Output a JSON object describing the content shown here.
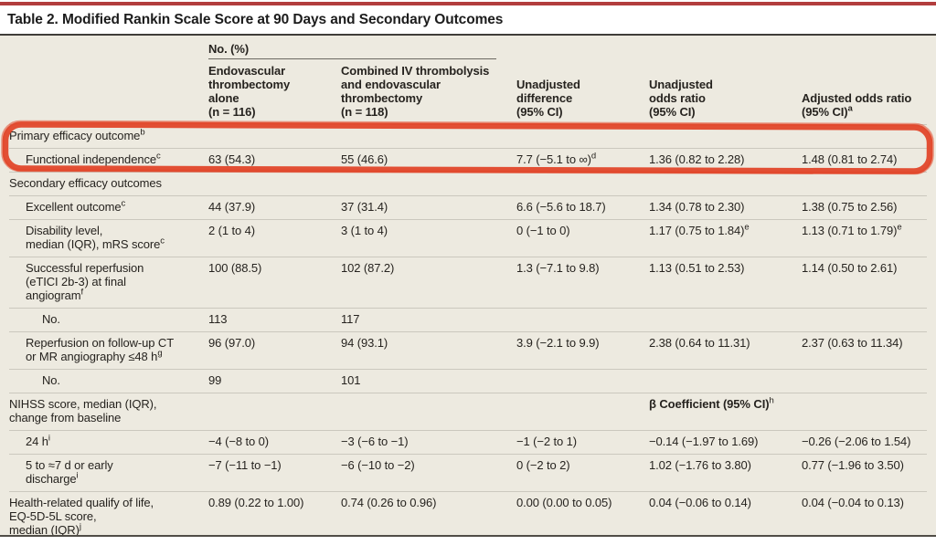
{
  "title": "Table 2. Modified Rankin Scale Score at 90 Days and Secondary Outcomes",
  "colors": {
    "top_bar": "#b23d3d",
    "panel_background": "#edeae0",
    "marker_annotation": "#e2472a"
  },
  "table": {
    "group_header": "No. (%)",
    "columns": [
      {
        "text": ""
      },
      {
        "text": "Endovascular\nthrombectomy\nalone\n(n = 116)"
      },
      {
        "text": "Combined IV thrombolysis\nand endovascular\nthrombectomy\n(n = 118)"
      },
      {
        "text": "Unadjusted\ndifference\n(95% CI)"
      },
      {
        "text": "Unadjusted\nodds ratio\n(95% CI)"
      },
      {
        "text": "Adjusted odds ratio\n(95% CI)",
        "sup": "a"
      }
    ],
    "rows": [
      {
        "indent": 0,
        "label": {
          "text": "Primary efficacy outcome",
          "sup": "b"
        },
        "cells": [
          "",
          "",
          "",
          "",
          ""
        ]
      },
      {
        "indent": 1,
        "label": {
          "text": "Functional independence",
          "sup": "c"
        },
        "cells": [
          "63 (54.3)",
          "55 (46.6)",
          {
            "text": "7.7 (−5.1 to ∞)",
            "sup": "d"
          },
          "1.36 (0.82 to 2.28)",
          "1.48 (0.81 to 2.74)"
        ]
      },
      {
        "indent": 0,
        "label": {
          "text": "Secondary efficacy outcomes"
        },
        "cells": [
          "",
          "",
          "",
          "",
          ""
        ]
      },
      {
        "indent": 1,
        "label": {
          "text": "Excellent outcome",
          "sup": "c"
        },
        "cells": [
          "44 (37.9)",
          "37 (31.4)",
          "6.6 (−5.6 to 18.7)",
          "1.34 (0.78 to 2.30)",
          "1.38 (0.75 to 2.56)"
        ]
      },
      {
        "indent": 1,
        "label": {
          "text": "Disability level,\nmedian (IQR), mRS score",
          "sup": "c"
        },
        "cells": [
          "2 (1 to 4)",
          "3 (1 to 4)",
          "0 (−1 to 0)",
          {
            "text": "1.17 (0.75 to 1.84)",
            "sup": "e"
          },
          {
            "text": "1.13 (0.71 to 1.79)",
            "sup": "e"
          }
        ]
      },
      {
        "indent": 1,
        "label": {
          "text": "Successful reperfusion\n(eTICI 2b-3) at final\nangiogram",
          "sup": "f"
        },
        "cells": [
          "100 (88.5)",
          "102 (87.2)",
          "1.3 (−7.1 to 9.8)",
          "1.13 (0.51 to 2.53)",
          "1.14 (0.50 to 2.61)"
        ]
      },
      {
        "indent": 2,
        "label": {
          "text": "No."
        },
        "cells": [
          "113",
          "117",
          "",
          "",
          ""
        ]
      },
      {
        "indent": 1,
        "label": {
          "text": "Reperfusion on follow-up CT\nor MR angiography ≤48 h",
          "sup": "g"
        },
        "cells": [
          "96 (97.0)",
          "94 (93.1)",
          "3.9 (−2.1 to 9.9)",
          "2.38 (0.64 to 11.31)",
          "2.37 (0.63 to 11.34)"
        ]
      },
      {
        "indent": 2,
        "label": {
          "text": "No."
        },
        "cells": [
          "99",
          "101",
          "",
          "",
          ""
        ]
      },
      {
        "indent": 0,
        "label": {
          "text": "NIHSS score, median (IQR),\nchange from baseline"
        },
        "cells": [
          "",
          "",
          "",
          {
            "text": "β Coefficient (95% CI)",
            "sup": "h",
            "bold": true
          },
          ""
        ]
      },
      {
        "indent": 1,
        "label": {
          "text": "24 h",
          "sup": "i"
        },
        "cells": [
          "−4 (−8 to 0)",
          "−3 (−6 to −1)",
          "−1 (−2 to 1)",
          "−0.14 (−1.97 to 1.69)",
          "−0.26 (−2.06 to 1.54)"
        ]
      },
      {
        "indent": 1,
        "label": {
          "text": "5 to ≈7 d or early\ndischarge",
          "sup": "i"
        },
        "cells": [
          "−7 (−11 to −1)",
          "−6 (−10 to −2)",
          "0 (−2 to 2)",
          "1.02 (−1.76 to 3.80)",
          "0.77 (−1.96 to 3.50)"
        ]
      },
      {
        "indent": 0,
        "label": {
          "text": "Health-related qualify of life,\nEQ-5D-5L score,\nmedian (IQR)",
          "sup": "j"
        },
        "cells": [
          "0.89 (0.22 to 1.00)",
          "0.74 (0.26 to 0.96)",
          "0.00 (0.00 to 0.05)",
          "0.04 (−0.06 to 0.14)",
          "0.04 (−0.04 to 0.13)"
        ]
      }
    ]
  }
}
